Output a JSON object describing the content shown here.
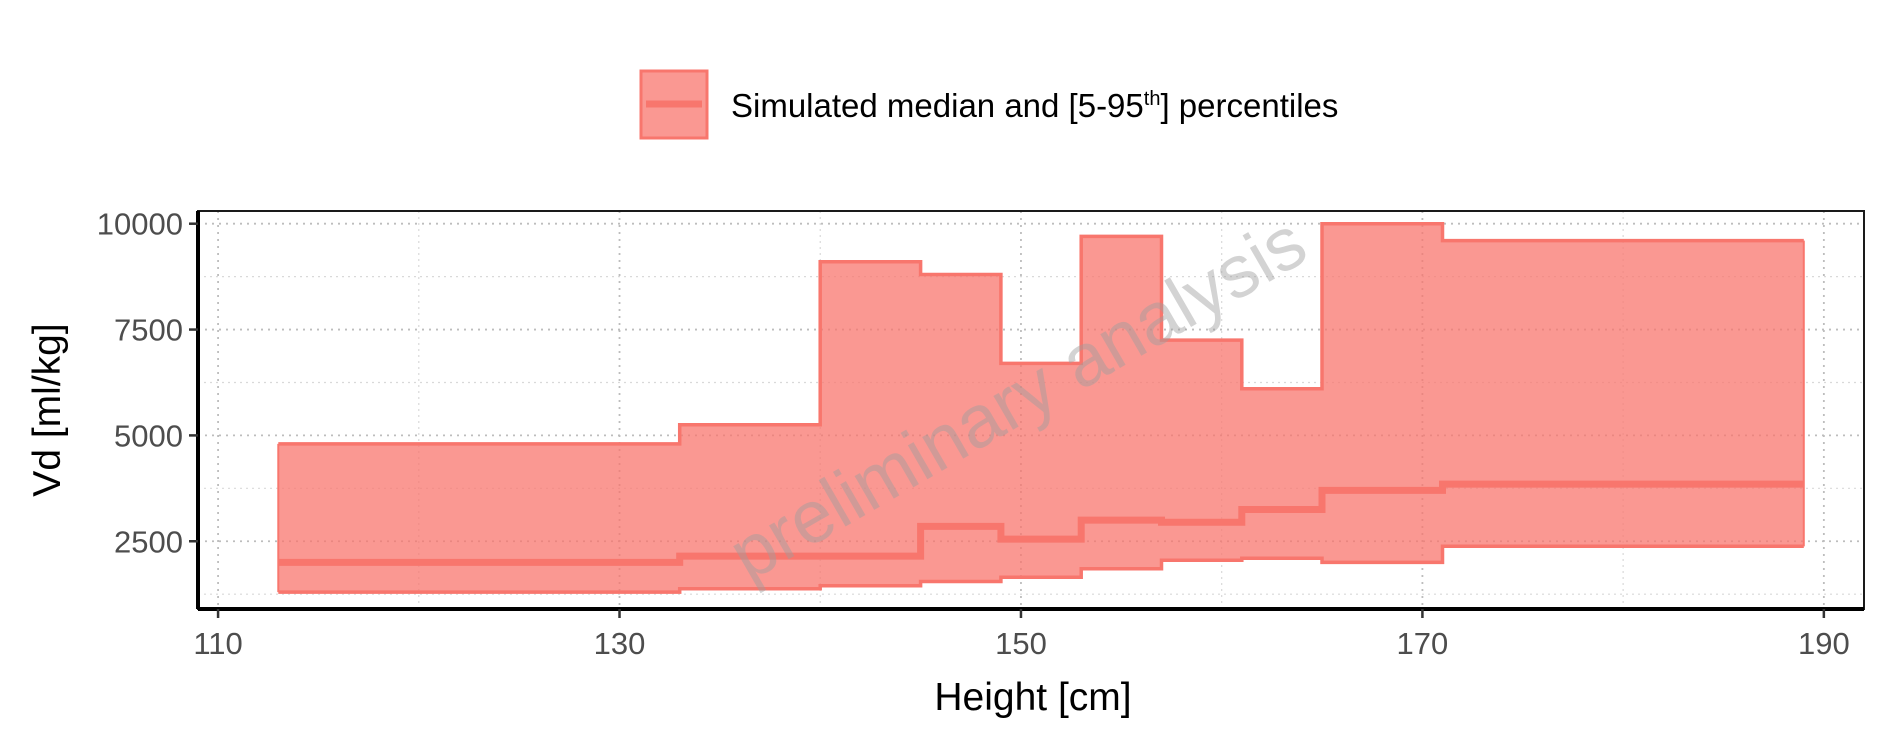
{
  "chart_data": {
    "type": "area",
    "xlabel": "Height [cm]",
    "ylabel": "Vd [ml/kg]",
    "xlim": [
      109,
      192
    ],
    "ylim": [
      900,
      10300
    ],
    "x_ticks": [
      110,
      130,
      150,
      170,
      190
    ],
    "y_ticks": [
      2500,
      5000,
      7500,
      10000
    ],
    "grid": true,
    "legend_position": "top",
    "legend": {
      "label_before": "Simulated median and [5-95",
      "label_sup": "th",
      "label_after": "] percentiles"
    },
    "watermark": "preliminary analysis",
    "series": [
      {
        "name": "Simulated median and [5-95th] percentiles",
        "step": "post",
        "x": [
          113,
          133,
          140,
          145,
          149,
          153,
          157,
          161,
          165,
          171,
          189
        ],
        "median": [
          2000,
          2150,
          2150,
          2850,
          2550,
          3000,
          2950,
          3250,
          3700,
          3850,
          3850
        ],
        "p5": [
          1300,
          1380,
          1450,
          1550,
          1650,
          1850,
          2050,
          2100,
          2000,
          2380,
          2380
        ],
        "p95": [
          4800,
          5250,
          9100,
          8800,
          6700,
          9700,
          7250,
          6100,
          10000,
          9600,
          9600
        ]
      }
    ],
    "colors": {
      "ribbon_fill": "#f8766d",
      "ribbon_line": "#f8766d",
      "median_line": "#f8766d"
    }
  }
}
